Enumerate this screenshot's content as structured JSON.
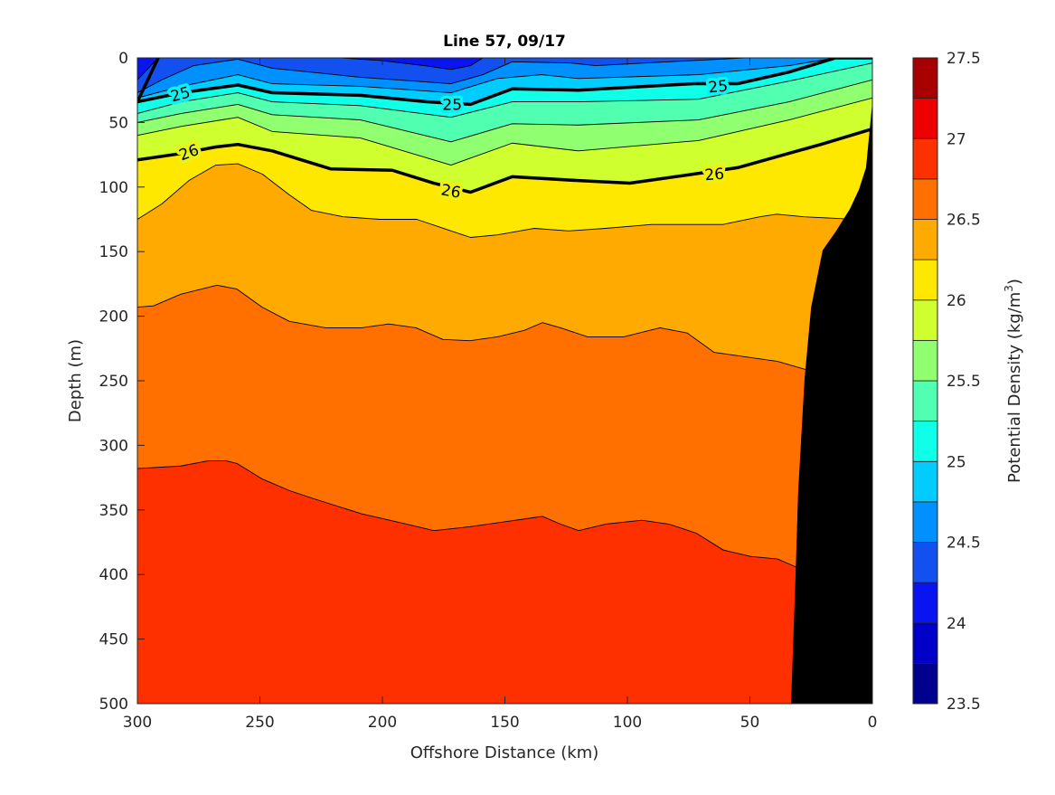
{
  "chart_data": {
    "type": "filled-contour",
    "title": "Line 57, 09/17",
    "xlabel": "Offshore Distance (km)",
    "ylabel": "Depth (m)",
    "colorbar_label": "Potential Density (kg/m",
    "colorbar_label_sup": "3",
    "colorbar_label_end": ")",
    "xlim": [
      300,
      0
    ],
    "ylim": [
      0,
      500
    ],
    "xticks": [
      "300",
      "250",
      "200",
      "150",
      "100",
      "50",
      "0"
    ],
    "yticks": [
      "0",
      "50",
      "100",
      "150",
      "200",
      "250",
      "300",
      "350",
      "400",
      "450",
      "500"
    ],
    "clim": [
      23.5,
      27.5
    ],
    "colorbar_ticks": [
      "23.5",
      "24",
      "24.5",
      "25",
      "25.5",
      "26",
      "26.5",
      "27",
      "27.5"
    ],
    "band_colors": [
      "#00008f",
      "#0000c8",
      "#0a14f0",
      "#1250f0",
      "#0090ff",
      "#00ccff",
      "#10ffe8",
      "#50ffb0",
      "#90ff70",
      "#d0ff30",
      "#ffe800",
      "#ffaa00",
      "#ff7000",
      "#ff3000",
      "#ef0000",
      "#a80000"
    ],
    "base_band_color": "#0a14f0",
    "contours": [
      {
        "level": 24.25,
        "color": "#1250f0",
        "points": [
          [
            300,
            17
          ],
          [
            291.5,
            0
          ],
          [
            217,
            0
          ],
          [
            201,
            2
          ],
          [
            183,
            6
          ],
          [
            172,
            9
          ],
          [
            164,
            6
          ],
          [
            159,
            0
          ],
          [
            0,
            0
          ]
        ]
      },
      {
        "level": 24.5,
        "color": "#0090ff",
        "points": [
          [
            300,
            27
          ],
          [
            290,
            17
          ],
          [
            277,
            6
          ],
          [
            259,
            1
          ],
          [
            245,
            8
          ],
          [
            209,
            15
          ],
          [
            172,
            20
          ],
          [
            159,
            13
          ],
          [
            147,
            3
          ],
          [
            123,
            4
          ],
          [
            113,
            6
          ],
          [
            83,
            3
          ],
          [
            52,
            0
          ],
          [
            0,
            0
          ]
        ]
      },
      {
        "level": 24.75,
        "color": "#00ccff",
        "points": [
          [
            300,
            31
          ],
          [
            282,
            22
          ],
          [
            259,
            13
          ],
          [
            245,
            20
          ],
          [
            209,
            22
          ],
          [
            172,
            27
          ],
          [
            153,
            16
          ],
          [
            135,
            13
          ],
          [
            120,
            16
          ],
          [
            71,
            13
          ],
          [
            34,
            6
          ],
          [
            15,
            0
          ],
          [
            0,
            0
          ]
        ]
      },
      {
        "level": 25,
        "color": "#10ffe8",
        "thick": true,
        "points": [
          [
            300,
            34
          ],
          [
            282,
            27
          ],
          [
            259,
            21
          ],
          [
            245,
            27
          ],
          [
            209,
            29
          ],
          [
            182,
            34
          ],
          [
            164,
            36
          ],
          [
            147,
            24
          ],
          [
            120,
            25
          ],
          [
            73,
            20
          ],
          [
            55,
            20
          ],
          [
            34,
            11
          ],
          [
            15,
            0
          ],
          [
            0,
            0
          ]
        ]
      },
      {
        "level": 25.25,
        "color": "#50ffb0",
        "points": [
          [
            300,
            43
          ],
          [
            282,
            34
          ],
          [
            259,
            27
          ],
          [
            245,
            34
          ],
          [
            209,
            37
          ],
          [
            172,
            46
          ],
          [
            147,
            34
          ],
          [
            120,
            34
          ],
          [
            71,
            32
          ],
          [
            34,
            18
          ],
          [
            0,
            4
          ]
        ]
      },
      {
        "level": 25.5,
        "color": "#90ff70",
        "points": [
          [
            300,
            50
          ],
          [
            282,
            43
          ],
          [
            259,
            36
          ],
          [
            245,
            44
          ],
          [
            209,
            48
          ],
          [
            172,
            65
          ],
          [
            147,
            51
          ],
          [
            120,
            52
          ],
          [
            71,
            48
          ],
          [
            34,
            34
          ],
          [
            0,
            17
          ]
        ]
      },
      {
        "level": 25.75,
        "color": "#d0ff30",
        "points": [
          [
            300,
            60
          ],
          [
            282,
            53
          ],
          [
            259,
            46
          ],
          [
            245,
            57
          ],
          [
            209,
            62
          ],
          [
            172,
            83
          ],
          [
            147,
            66
          ],
          [
            120,
            72
          ],
          [
            71,
            64
          ],
          [
            34,
            48
          ],
          [
            0,
            31
          ]
        ]
      },
      {
        "level": 26,
        "color": "#ffe800",
        "thick": true,
        "points": [
          [
            300,
            79
          ],
          [
            282,
            74
          ],
          [
            268,
            69
          ],
          [
            259,
            67
          ],
          [
            245,
            72
          ],
          [
            221,
            86
          ],
          [
            196,
            87
          ],
          [
            179,
            97
          ],
          [
            164,
            104
          ],
          [
            147,
            92
          ],
          [
            120,
            95
          ],
          [
            99,
            97
          ],
          [
            73,
            90
          ],
          [
            55,
            85
          ],
          [
            21,
            67
          ],
          [
            0,
            55
          ]
        ]
      },
      {
        "level": 26.25,
        "color": "#ffaa00",
        "points": [
          [
            300,
            125
          ],
          [
            290,
            113
          ],
          [
            279,
            95
          ],
          [
            268,
            83
          ],
          [
            259,
            82
          ],
          [
            249,
            90
          ],
          [
            238,
            106
          ],
          [
            229,
            118
          ],
          [
            216,
            123
          ],
          [
            201,
            125
          ],
          [
            186,
            125
          ],
          [
            172,
            134
          ],
          [
            164,
            139
          ],
          [
            153,
            137
          ],
          [
            138,
            132
          ],
          [
            124,
            134
          ],
          [
            109,
            132
          ],
          [
            90,
            129
          ],
          [
            61,
            129
          ],
          [
            46,
            123
          ],
          [
            39,
            121
          ],
          [
            28,
            123
          ],
          [
            7,
            125
          ],
          [
            0,
            125
          ]
        ]
      },
      {
        "level": 26.5,
        "color": "#ff7000",
        "points": [
          [
            300,
            193
          ],
          [
            293.4,
            192
          ],
          [
            282.3,
            183
          ],
          [
            267.5,
            176
          ],
          [
            259.4,
            179
          ],
          [
            249.1,
            193
          ],
          [
            238,
            204
          ],
          [
            223.2,
            209
          ],
          [
            208.5,
            209
          ],
          [
            197.4,
            206
          ],
          [
            186.3,
            209
          ],
          [
            175.3,
            218
          ],
          [
            164.2,
            219
          ],
          [
            153.1,
            216
          ],
          [
            142.1,
            211
          ],
          [
            134.7,
            205
          ],
          [
            127.3,
            209
          ],
          [
            116.2,
            216
          ],
          [
            101.5,
            216
          ],
          [
            86.7,
            209
          ],
          [
            75.6,
            213
          ],
          [
            64.6,
            228
          ],
          [
            49.8,
            232
          ],
          [
            38.7,
            235
          ],
          [
            27.7,
            241
          ],
          [
            0,
            249
          ]
        ]
      },
      {
        "level": 26.75,
        "color": "#ff3000",
        "points": [
          [
            300,
            318
          ],
          [
            282.3,
            316
          ],
          [
            271.2,
            312
          ],
          [
            263.8,
            312
          ],
          [
            259.4,
            314
          ],
          [
            249.1,
            326
          ],
          [
            238,
            335
          ],
          [
            226.9,
            342
          ],
          [
            208.5,
            353
          ],
          [
            190,
            361
          ],
          [
            179,
            366
          ],
          [
            164.2,
            363
          ],
          [
            153.1,
            360
          ],
          [
            138.4,
            356
          ],
          [
            134.7,
            355
          ],
          [
            127.3,
            361
          ],
          [
            119.9,
            366
          ],
          [
            108.9,
            361
          ],
          [
            94.1,
            358
          ],
          [
            83,
            361
          ],
          [
            71.9,
            368
          ],
          [
            60.9,
            381
          ],
          [
            49.8,
            386
          ],
          [
            38.7,
            388
          ],
          [
            31.4,
            394
          ],
          [
            0,
            403
          ]
        ]
      }
    ],
    "contour_labels": [
      {
        "text": "25",
        "km": 282.5,
        "depth": 28,
        "halo": "#10f0f0"
      },
      {
        "text": "25",
        "km": 171.5,
        "depth": 36,
        "halo": "#10f0f0"
      },
      {
        "text": "25",
        "km": 63,
        "depth": 22,
        "halo": "#10f0f0"
      },
      {
        "text": "26",
        "km": 279,
        "depth": 73,
        "halo": "#e8f418"
      },
      {
        "text": "26",
        "km": 172,
        "depth": 103,
        "halo": "#f0f010"
      },
      {
        "text": "26",
        "km": 64.5,
        "depth": 90,
        "halo": "#f0f010"
      }
    ],
    "bathymetry": {
      "color": "#000000",
      "points": [
        [
          0,
          34
        ],
        [
          2.6,
          85
        ],
        [
          5.5,
          102
        ],
        [
          9.2,
          117
        ],
        [
          14.8,
          134
        ],
        [
          20.3,
          149
        ],
        [
          25,
          193
        ],
        [
          27.7,
          249
        ],
        [
          30.3,
          336
        ],
        [
          31.4,
          403
        ],
        [
          33.2,
          500
        ],
        [
          0,
          500
        ]
      ]
    }
  }
}
